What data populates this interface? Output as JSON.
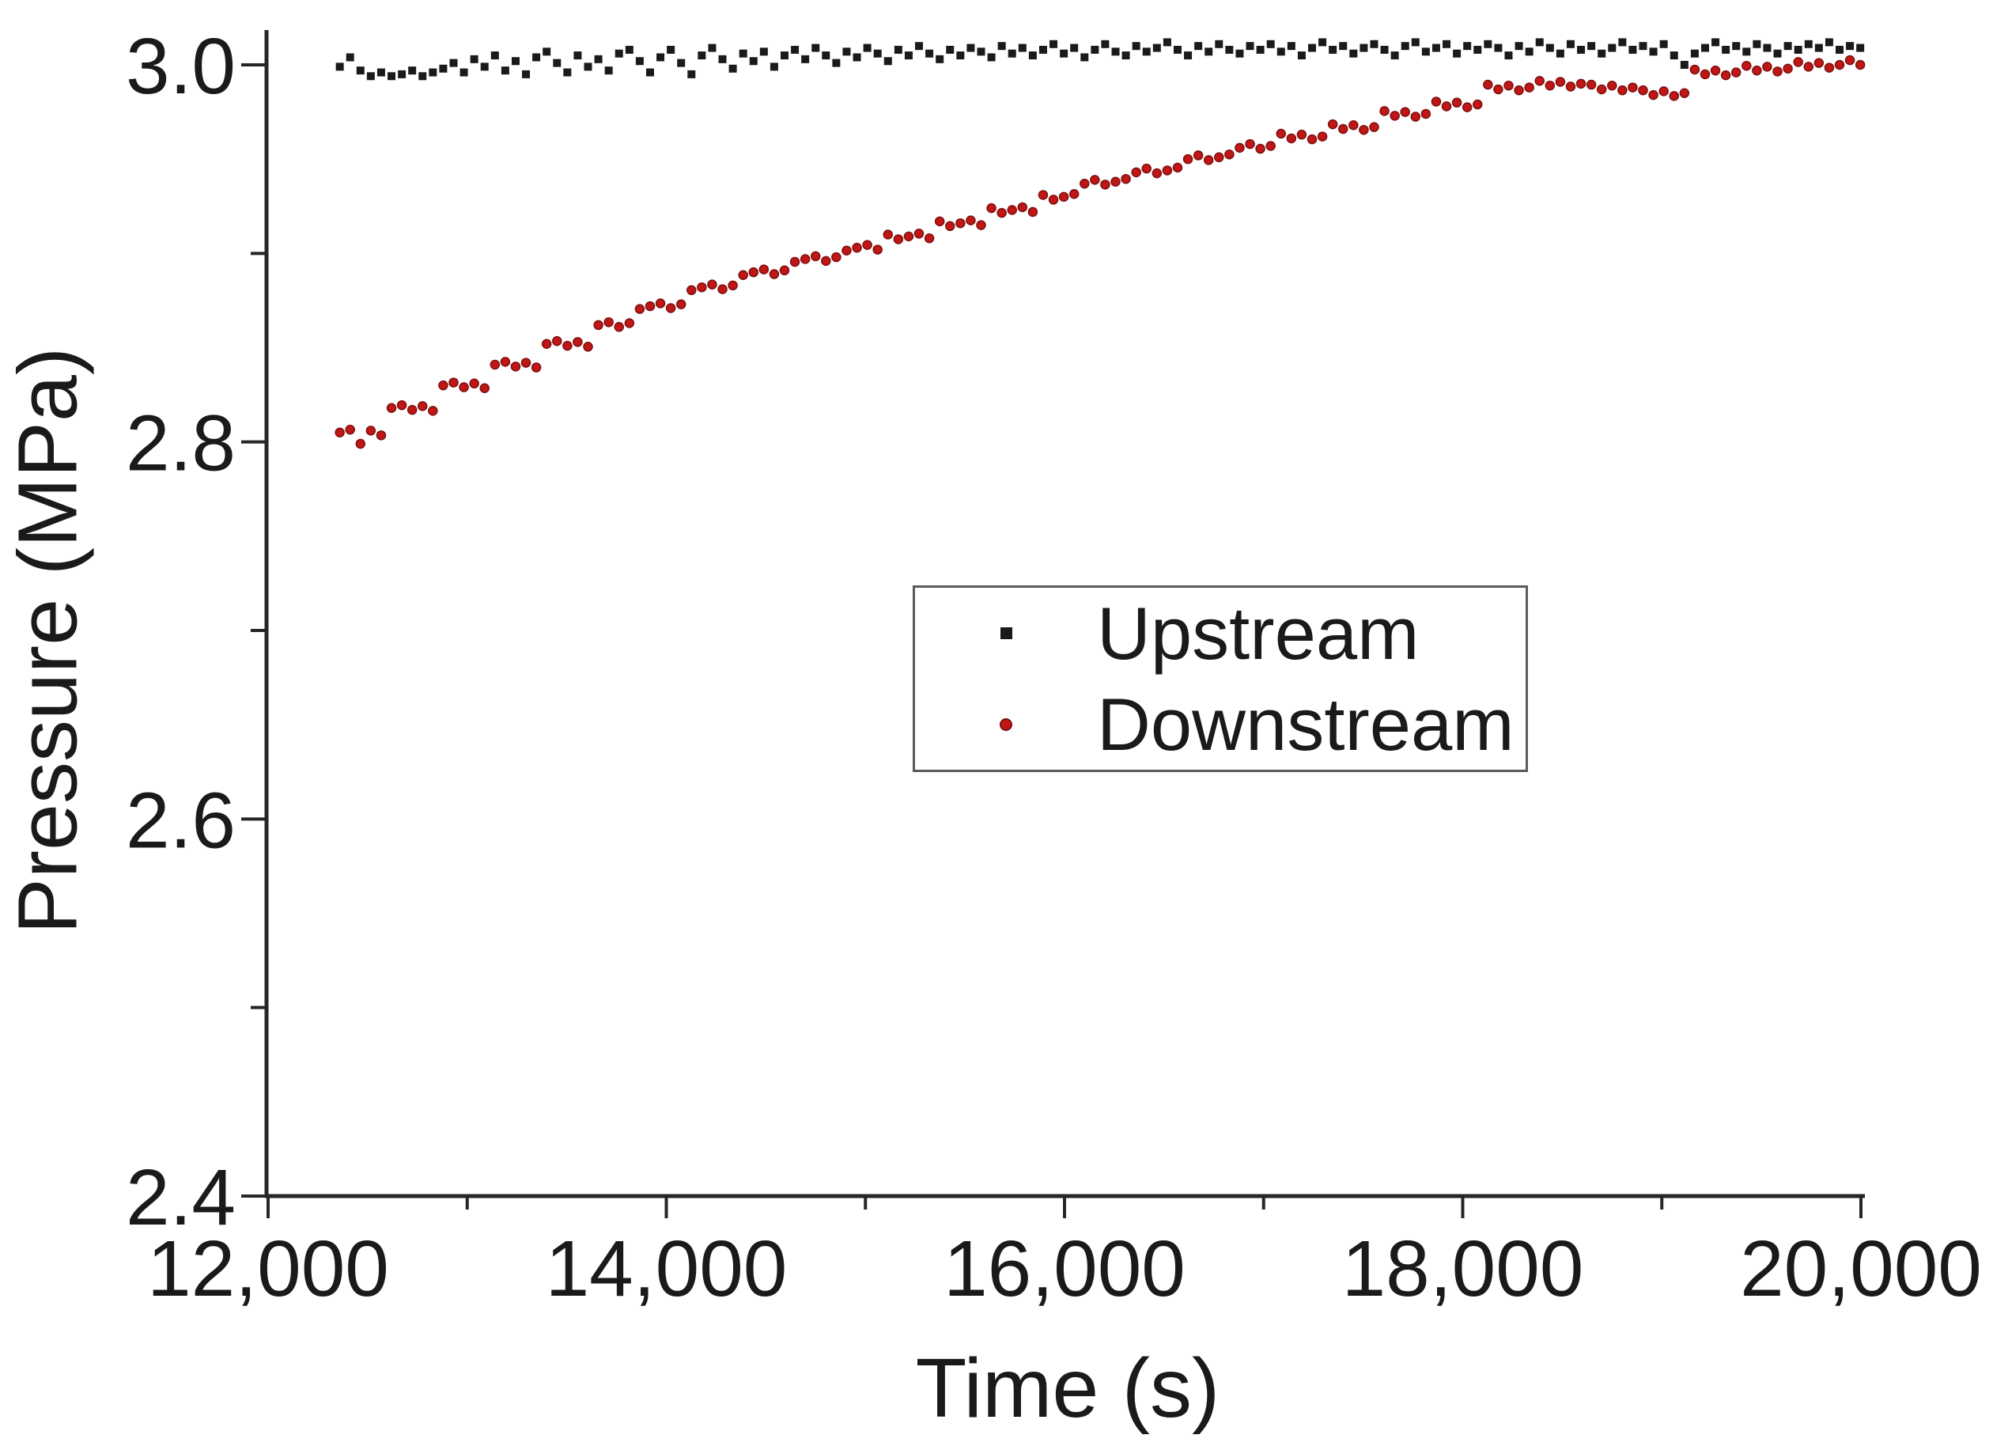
{
  "chart_data": {
    "type": "scatter",
    "title": "",
    "xlabel": "Time (s)",
    "ylabel": "Pressure (MPa)",
    "xlim": [
      12000,
      20000
    ],
    "ylim": [
      2.4,
      3.05
    ],
    "grid": false,
    "legend_position": "upper-center-inside",
    "x_ticks_major": [
      12000,
      14000,
      16000,
      18000,
      20000
    ],
    "x_tick_labels": [
      "12,000",
      "14,000",
      "16,000",
      "18,000",
      "20,000"
    ],
    "x_ticks_minor": [
      13000,
      15000,
      17000,
      19000
    ],
    "y_ticks_major": [
      2.4,
      2.6,
      2.8,
      3.0
    ],
    "y_tick_labels": [
      "2.4",
      "2.6",
      "2.8",
      "3.0"
    ],
    "y_ticks_minor": [
      2.5,
      2.7,
      2.9
    ],
    "axis_color": "#262626",
    "series": [
      {
        "name": "Upstream",
        "marker": "square",
        "marker_size": 10,
        "color": "#1a1a1a",
        "t0": 12360,
        "dt": 51.95,
        "values": [
          2.999,
          3.004,
          2.997,
          2.994,
          2.996,
          2.994,
          2.995,
          2.997,
          2.994,
          2.996,
          2.998,
          3.001,
          2.996,
          3.003,
          2.999,
          3.005,
          2.997,
          3.002,
          2.995,
          3.004,
          3.007,
          3.001,
          2.996,
          3.005,
          2.999,
          3.003,
          2.997,
          3.006,
          3.008,
          3.002,
          2.996,
          3.004,
          3.008,
          3.001,
          2.995,
          3.005,
          3.009,
          3.003,
          2.998,
          3.006,
          3.002,
          3.007,
          2.999,
          3.005,
          3.008,
          3.003,
          3.009,
          3.005,
          3.001,
          3.007,
          3.004,
          3.009,
          3.006,
          3.002,
          3.008,
          3.005,
          3.01,
          3.006,
          3.003,
          3.008,
          3.005,
          3.009,
          3.007,
          3.004,
          3.01,
          3.006,
          3.009,
          3.005,
          3.008,
          3.011,
          3.006,
          3.009,
          3.004,
          3.008,
          3.011,
          3.007,
          3.005,
          3.01,
          3.007,
          3.009,
          3.012,
          3.008,
          3.005,
          3.01,
          3.007,
          3.011,
          3.008,
          3.006,
          3.01,
          3.008,
          3.011,
          3.007,
          3.01,
          3.005,
          3.009,
          3.012,
          3.008,
          3.01,
          3.006,
          3.009,
          3.011,
          3.008,
          3.005,
          3.01,
          3.012,
          3.007,
          3.009,
          3.011,
          3.006,
          3.01,
          3.008,
          3.011,
          3.009,
          3.005,
          3.01,
          3.007,
          3.012,
          3.009,
          3.006,
          3.011,
          3.008,
          3.01,
          3.006,
          3.009,
          3.012,
          3.008,
          3.01,
          3.007,
          3.011,
          3.005,
          3.0,
          3.006,
          3.009,
          3.012,
          3.008,
          3.01,
          3.007,
          3.011,
          3.009,
          3.006,
          3.01,
          3.008,
          3.011,
          3.009,
          3.012,
          3.008,
          3.01,
          3.009
        ]
      },
      {
        "name": "Downstream",
        "marker": "circle",
        "marker_size": 11,
        "color": "#c01616",
        "stroke": "#7d0f0f",
        "t0": 12360,
        "dt": 51.95,
        "values": [
          2.805,
          2.8065,
          2.799,
          2.806,
          2.8035,
          2.818,
          2.8195,
          2.817,
          2.819,
          2.8165,
          2.83,
          2.8315,
          2.829,
          2.831,
          2.8285,
          2.841,
          2.8425,
          2.84,
          2.842,
          2.8395,
          2.852,
          2.8535,
          2.851,
          2.853,
          2.8505,
          2.862,
          2.8635,
          2.861,
          2.863,
          2.8705,
          2.872,
          2.8735,
          2.871,
          2.873,
          2.8805,
          2.882,
          2.8835,
          2.881,
          2.883,
          2.8885,
          2.89,
          2.8915,
          2.889,
          2.891,
          2.8955,
          2.897,
          2.8985,
          2.896,
          2.898,
          2.9015,
          2.903,
          2.9045,
          2.902,
          2.91,
          2.9075,
          2.909,
          2.9105,
          2.908,
          2.917,
          2.9145,
          2.916,
          2.9175,
          2.915,
          2.924,
          2.9215,
          2.923,
          2.9245,
          2.922,
          2.931,
          2.9285,
          2.93,
          2.9315,
          2.937,
          2.939,
          2.9365,
          2.938,
          2.9395,
          2.943,
          2.945,
          2.9425,
          2.944,
          2.9455,
          2.95,
          2.952,
          2.9495,
          2.951,
          2.9525,
          2.956,
          2.958,
          2.9555,
          2.957,
          2.9635,
          2.961,
          2.963,
          2.9605,
          2.962,
          2.9685,
          2.966,
          2.968,
          2.9655,
          2.967,
          2.9755,
          2.973,
          2.975,
          2.9725,
          2.974,
          2.9805,
          2.978,
          2.98,
          2.9775,
          2.979,
          2.9895,
          2.987,
          2.989,
          2.9865,
          2.988,
          2.9915,
          2.989,
          2.991,
          2.9885,
          2.99,
          2.9895,
          2.987,
          2.989,
          2.9865,
          2.988,
          2.9865,
          2.984,
          2.986,
          2.9835,
          2.985,
          2.9975,
          2.995,
          2.997,
          2.9945,
          2.996,
          2.9995,
          2.997,
          2.999,
          2.9965,
          2.998,
          3.0015,
          2.999,
          3.001,
          2.9985,
          3.0,
          3.0025,
          3.0
        ]
      }
    ]
  }
}
